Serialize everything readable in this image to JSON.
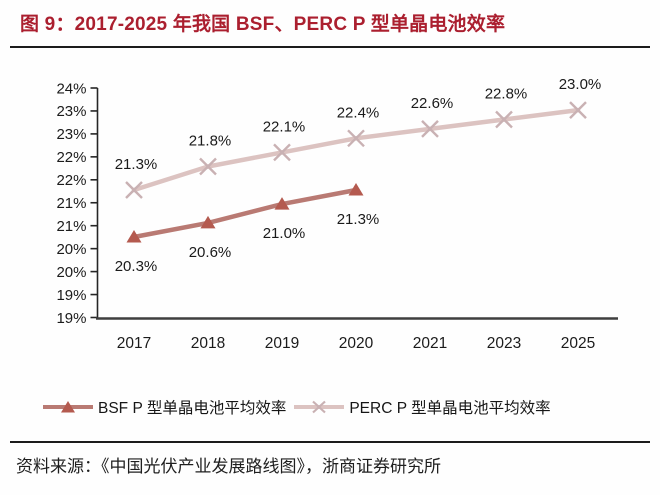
{
  "header": {
    "title": "图 9：2017-2025 年我国 BSF、PERC P 型单晶电池效率"
  },
  "footer": {
    "source": "资料来源：《中国光伏产业发展路线图》，浙商证券研究所"
  },
  "legend": {
    "items": [
      {
        "label": "BSF P 型单晶电池平均效率",
        "marker": "triangle"
      },
      {
        "label": "PERC P 型单晶电池平均效率",
        "marker": "x"
      }
    ]
  },
  "colors": {
    "accent": "#ab1f2f",
    "rule": "#1c1c1c",
    "axis_line": "#262626",
    "baseline": "#3f3f3f",
    "text": "#1b1b1b",
    "bsf_line": "#b97a73",
    "bsf_marker": "#b45a4f",
    "perc_line": "#dcc3c1",
    "perc_marker": "#c9b1b3"
  },
  "chart_data": {
    "type": "line",
    "title": "图 9：2017-2025 年我国 BSF、PERC P 型单晶电池效率",
    "categories": [
      "2017",
      "2018",
      "2019",
      "2020",
      "2021",
      "2023",
      "2025"
    ],
    "yaxis": {
      "min": 19,
      "max": 24,
      "step": 0.5,
      "unit": "%",
      "tick_labels_top_to_bottom": [
        "24%",
        "23%",
        "23%",
        "22%",
        "22%",
        "21%",
        "21%",
        "20%",
        "20%",
        "19%",
        "19%"
      ]
    },
    "grid": false,
    "legend_position": "bottom",
    "series": [
      {
        "name": "BSF P 型单晶电池平均效率",
        "marker": "triangle",
        "values": [
          20.3,
          20.6,
          21.0,
          21.3,
          null,
          null,
          null
        ],
        "point_labels": [
          "20.3%",
          "20.6%",
          "21.0%",
          "21.3%",
          "",
          "",
          ""
        ],
        "label_position": "below"
      },
      {
        "name": "PERC P 型单晶电池平均效率",
        "marker": "x",
        "values": [
          21.3,
          21.8,
          22.1,
          22.4,
          22.6,
          22.8,
          23.0
        ],
        "point_labels": [
          "21.3%",
          "21.8%",
          "22.1%",
          "22.4%",
          "22.6%",
          "22.8%",
          "23.0%"
        ],
        "label_position": "above"
      }
    ]
  }
}
